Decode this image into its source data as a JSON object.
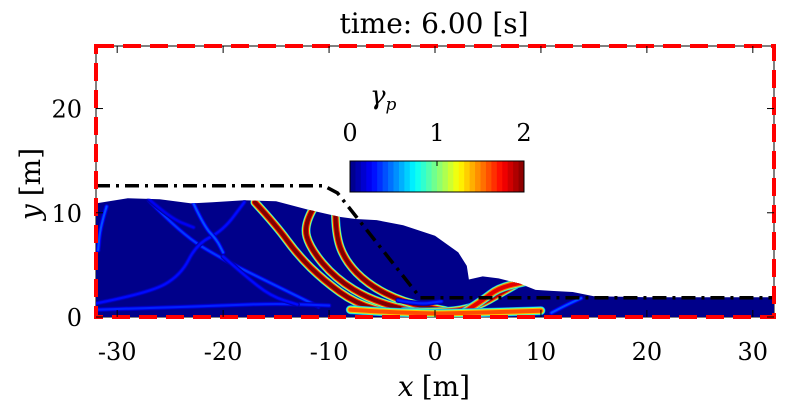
{
  "chart_data": {
    "type": "heatmap",
    "title": "time: 6.00 [s]",
    "xlabel_var": "x",
    "xlabel_unit": "[m]",
    "ylabel_var": "y",
    "ylabel_unit": "[m]",
    "xlim": [
      -32,
      32
    ],
    "ylim": [
      0,
      26
    ],
    "xticks": [
      -30,
      -20,
      -10,
      0,
      10,
      20,
      30
    ],
    "yticks": [
      0,
      10,
      20
    ],
    "colorbar": {
      "label_base": "γ",
      "label_sub": "p",
      "min": 0,
      "max": 2,
      "ticks": [
        0,
        1,
        2
      ],
      "colormap": "jet"
    },
    "initial_profile": [
      [
        -32,
        12.6
      ],
      [
        -10.5,
        12.6
      ],
      [
        -9.2,
        11.9
      ],
      [
        -1.4,
        1.85
      ],
      [
        32,
        1.85
      ]
    ],
    "final_surface": [
      [
        -32,
        10.9
      ],
      [
        -29,
        11.4
      ],
      [
        -26,
        11.3
      ],
      [
        -23,
        10.9
      ],
      [
        -21,
        11.0
      ],
      [
        -18,
        11.2
      ],
      [
        -15,
        11.1
      ],
      [
        -12,
        10.3
      ],
      [
        -9,
        9.6
      ],
      [
        -7.5,
        9.4
      ],
      [
        -5.5,
        9.3
      ],
      [
        -3,
        8.8
      ],
      [
        0,
        7.8
      ],
      [
        2.2,
        6.2
      ],
      [
        3.0,
        4.9
      ],
      [
        3.2,
        3.6
      ],
      [
        4.5,
        3.9
      ],
      [
        6,
        3.7
      ],
      [
        8,
        3.2
      ],
      [
        9.5,
        2.6
      ],
      [
        11,
        2.5
      ],
      [
        13,
        2.4
      ],
      [
        15,
        2.0
      ],
      [
        20,
        1.9
      ],
      [
        32,
        1.9
      ]
    ],
    "shear_bands": [
      {
        "points": [
          [
            -17,
            11.0
          ],
          [
            -15,
            8.8
          ],
          [
            -13,
            6.0
          ],
          [
            -10.5,
            3.5
          ],
          [
            -7.5,
            1.3
          ],
          [
            -4,
            0.3
          ]
        ],
        "strength": 2
      },
      {
        "points": [
          [
            -11.5,
            10.4
          ],
          [
            -12.4,
            8.8
          ],
          [
            -11.8,
            6.6
          ],
          [
            -9.4,
            3.7
          ],
          [
            -6,
            1.6
          ],
          [
            -2,
            0.5
          ]
        ],
        "strength": 2
      },
      {
        "points": [
          [
            -9.4,
            10.3
          ],
          [
            -9.4,
            8.0
          ],
          [
            -8.5,
            5.4
          ],
          [
            -6.3,
            3.1
          ],
          [
            -3,
            1.4
          ],
          [
            1,
            0.6
          ]
        ],
        "strength": 2
      },
      {
        "points": [
          [
            -3,
            0.5
          ],
          [
            1,
            0.4
          ],
          [
            4,
            1.0
          ],
          [
            6.2,
            2.3
          ],
          [
            7.6,
            3.1
          ]
        ],
        "strength": 1.9
      },
      {
        "points": [
          [
            2.5,
            0.3
          ],
          [
            4.5,
            1.6
          ],
          [
            6,
            2.8
          ],
          [
            8.6,
            3.4
          ]
        ],
        "strength": 1.8
      },
      {
        "points": [
          [
            -8,
            0.7
          ],
          [
            -2,
            0.3
          ],
          [
            4,
            0.4
          ],
          [
            10,
            0.6
          ]
        ],
        "strength": 1.6
      },
      {
        "points": [
          [
            -27,
            11.2
          ],
          [
            -24,
            8.0
          ],
          [
            -20,
            5.5
          ],
          [
            -15,
            3.0
          ],
          [
            -11,
            1.0
          ]
        ],
        "strength": 0.8
      },
      {
        "points": [
          [
            -32,
            1.3
          ],
          [
            -27,
            2.3
          ],
          [
            -24,
            4.0
          ],
          [
            -22.5,
            7.0
          ],
          [
            -20,
            8.3
          ],
          [
            -18,
            11
          ]
        ],
        "strength": 0.6
      },
      {
        "points": [
          [
            -32,
            0.7
          ],
          [
            -26,
            0.9
          ],
          [
            -20,
            1.1
          ],
          [
            -15,
            1.3
          ],
          [
            -10,
            1.1
          ]
        ],
        "strength": 0.7
      },
      {
        "points": [
          [
            -22.8,
            10.9
          ],
          [
            -21.8,
            8.7
          ],
          [
            -20.6,
            7.4
          ],
          [
            -20,
            6.2
          ]
        ],
        "strength": 0.9
      },
      {
        "points": [
          [
            -27,
            11.3
          ],
          [
            -25,
            9.5
          ],
          [
            -22.8,
            8.6
          ]
        ],
        "strength": 0.5
      },
      {
        "points": [
          [
            -20,
            5.8
          ],
          [
            -18,
            4.0
          ],
          [
            -15.5,
            2.0
          ],
          [
            -13,
            1.2
          ]
        ],
        "strength": 0.6
      },
      {
        "points": [
          [
            11,
            0.4
          ],
          [
            12.3,
            1.1
          ],
          [
            13.8,
            1.8
          ]
        ],
        "strength": 0.9
      },
      {
        "points": [
          [
            -31,
            10.6
          ],
          [
            -31.6,
            8.6
          ],
          [
            -31.8,
            6.4
          ]
        ],
        "strength": 0.9
      },
      {
        "points": [
          [
            -3.5,
            1.6
          ],
          [
            -1.5,
            1.2
          ],
          [
            0.6,
            1.5
          ]
        ],
        "strength": 0.7
      }
    ]
  }
}
